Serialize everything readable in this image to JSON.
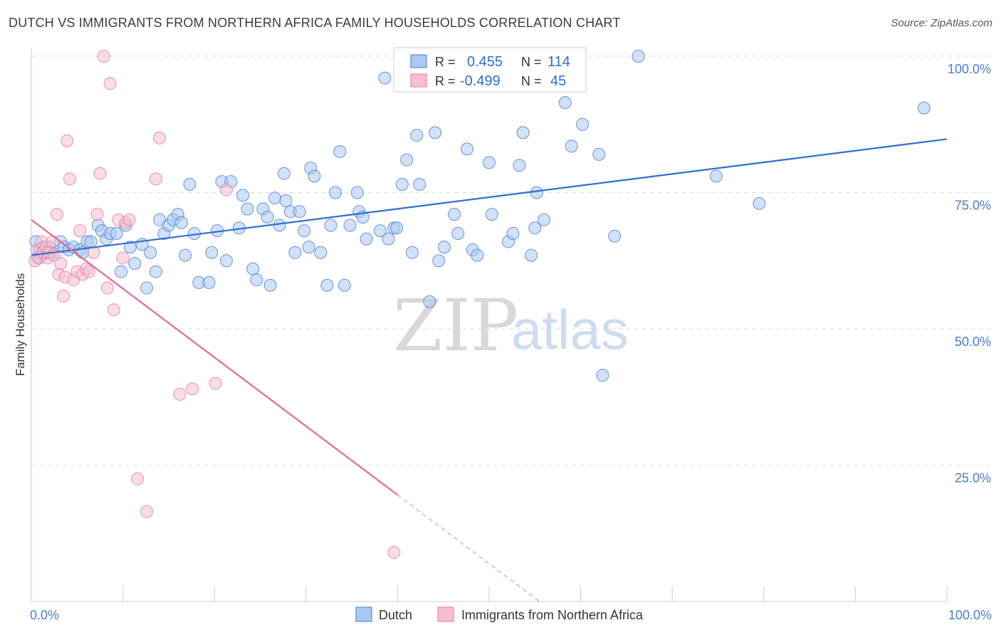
{
  "header": {
    "title": "DUTCH VS IMMIGRANTS FROM NORTHERN AFRICA FAMILY HOUSEHOLDS CORRELATION CHART",
    "source": "Source: ZipAtlas.com"
  },
  "stats_box": {
    "rows": [
      {
        "r_label": "R =",
        "r_value": "0.455",
        "n_label": "N =",
        "n_value": "114",
        "color": "#a9c8f2",
        "stroke": "#4a7bd0"
      },
      {
        "r_label": "R =",
        "r_value": "-0.499",
        "n_label": "N =",
        "n_value": "45",
        "color": "#f6bfd0",
        "stroke": "#e07aa0"
      }
    ]
  },
  "watermark": {
    "zip": "ZIP",
    "atlas": "atlas"
  },
  "chart_data": {
    "type": "scatter",
    "title": "DUTCH VS IMMIGRANTS FROM NORTHERN AFRICA FAMILY HOUSEHOLDS CORRELATION CHART",
    "xlabel": "",
    "ylabel": "Family Households",
    "xlim": [
      0,
      100
    ],
    "ylim": [
      0,
      100
    ],
    "x_tick_labels": [
      {
        "value": 0,
        "label": "0.0%"
      },
      {
        "value": 100,
        "label": "100.0%"
      }
    ],
    "y_tick_labels": [
      {
        "value": 100,
        "label": "100.0%"
      },
      {
        "value": 75,
        "label": "75.0%"
      },
      {
        "value": 50,
        "label": "50.0%"
      },
      {
        "value": 25,
        "label": "25.0%"
      }
    ],
    "grid": "horizontal dashed",
    "legend_position": "bottom-center",
    "series": [
      {
        "name": "Dutch",
        "color": "#a9c8f2",
        "stroke": "#4a7bd0",
        "line_color": "#2e6fce",
        "trend": {
          "x": [
            0,
            100
          ],
          "y": [
            63.5,
            84.8
          ],
          "dashed_from": null
        },
        "points": [
          [
            0.5,
            66
          ],
          [
            0.7,
            63
          ],
          [
            0.9,
            64.5
          ],
          [
            1.1,
            63.5
          ],
          [
            1.3,
            65
          ],
          [
            1.5,
            64
          ],
          [
            1.8,
            64
          ],
          [
            2.0,
            65
          ],
          [
            2.3,
            64
          ],
          [
            3.2,
            66
          ],
          [
            3.6,
            65
          ],
          [
            4.1,
            64.5
          ],
          [
            4.6,
            65
          ],
          [
            5.3,
            64.5
          ],
          [
            5.6,
            64
          ],
          [
            6.1,
            66
          ],
          [
            6.5,
            66
          ],
          [
            7.3,
            69
          ],
          [
            7.7,
            68
          ],
          [
            8.2,
            66.5
          ],
          [
            8.6,
            67.5
          ],
          [
            9.3,
            67.5
          ],
          [
            9.8,
            60.5
          ],
          [
            10.3,
            69
          ],
          [
            10.8,
            65
          ],
          [
            11.3,
            62
          ],
          [
            12.1,
            65.5
          ],
          [
            12.6,
            57.5
          ],
          [
            13.0,
            64
          ],
          [
            13.6,
            60.5
          ],
          [
            14.0,
            70
          ],
          [
            14.5,
            67.5
          ],
          [
            15.0,
            69
          ],
          [
            15.5,
            70
          ],
          [
            16.0,
            71
          ],
          [
            16.4,
            69.5
          ],
          [
            16.8,
            63.5
          ],
          [
            17.3,
            76.5
          ],
          [
            17.8,
            67.5
          ],
          [
            18.3,
            58.5
          ],
          [
            19.4,
            58.5
          ],
          [
            19.7,
            64
          ],
          [
            20.3,
            68
          ],
          [
            20.8,
            77
          ],
          [
            21.3,
            62.5
          ],
          [
            21.8,
            77
          ],
          [
            22.7,
            68.5
          ],
          [
            23.1,
            74.5
          ],
          [
            23.6,
            72
          ],
          [
            24.2,
            61
          ],
          [
            24.6,
            59
          ],
          [
            25.3,
            72
          ],
          [
            25.8,
            70.5
          ],
          [
            26.1,
            58
          ],
          [
            26.6,
            74
          ],
          [
            27.1,
            69
          ],
          [
            27.6,
            78.5
          ],
          [
            27.8,
            73.5
          ],
          [
            28.3,
            71.5
          ],
          [
            28.8,
            64
          ],
          [
            29.3,
            71.5
          ],
          [
            29.8,
            68
          ],
          [
            30.3,
            65
          ],
          [
            30.5,
            79.5
          ],
          [
            30.9,
            78
          ],
          [
            31.6,
            64
          ],
          [
            32.3,
            58
          ],
          [
            32.7,
            69
          ],
          [
            33.2,
            75
          ],
          [
            33.7,
            82.5
          ],
          [
            34.2,
            58
          ],
          [
            34.8,
            69
          ],
          [
            35.6,
            75
          ],
          [
            35.8,
            71.5
          ],
          [
            36.2,
            70.5
          ],
          [
            36.6,
            66.5
          ],
          [
            38.1,
            68
          ],
          [
            38.6,
            96
          ],
          [
            39.0,
            66.5
          ],
          [
            39.6,
            68.5
          ],
          [
            39.9,
            68.5
          ],
          [
            40.5,
            76.5
          ],
          [
            41.0,
            81
          ],
          [
            41.6,
            64
          ],
          [
            42.1,
            85.5
          ],
          [
            42.4,
            76.5
          ],
          [
            43.5,
            55
          ],
          [
            44.1,
            86
          ],
          [
            44.5,
            62.5
          ],
          [
            45.1,
            65
          ],
          [
            46.2,
            71
          ],
          [
            46.6,
            67.5
          ],
          [
            47.6,
            83
          ],
          [
            48.2,
            64.5
          ],
          [
            48.7,
            63.5
          ],
          [
            50.0,
            80.5
          ],
          [
            50.3,
            71
          ],
          [
            52.1,
            66
          ],
          [
            52.6,
            67.5
          ],
          [
            53.3,
            80
          ],
          [
            53.7,
            86
          ],
          [
            54.6,
            63.5
          ],
          [
            55.0,
            68.5
          ],
          [
            55.2,
            75
          ],
          [
            56.0,
            70
          ],
          [
            58.3,
            91.5
          ],
          [
            59.0,
            83.5
          ],
          [
            60.2,
            87.5
          ],
          [
            62.0,
            82
          ],
          [
            62.4,
            41.5
          ],
          [
            63.7,
            67
          ],
          [
            66.3,
            100
          ],
          [
            74.8,
            78
          ],
          [
            79.5,
            73
          ],
          [
            97.5,
            90.5
          ]
        ]
      },
      {
        "name": "Immigrants from Northern Africa",
        "color": "#f6bfd0",
        "stroke": "#e07aa0",
        "line_color": "#e06a98",
        "trend": {
          "x": [
            0,
            55.5
          ],
          "y": [
            70,
            0
          ],
          "dashed_from": 40
        },
        "points": [
          [
            0.4,
            62.5
          ],
          [
            0.6,
            64.5
          ],
          [
            0.9,
            63
          ],
          [
            1.1,
            66
          ],
          [
            1.3,
            64
          ],
          [
            1.6,
            65
          ],
          [
            1.8,
            63
          ],
          [
            2.0,
            64
          ],
          [
            2.3,
            66
          ],
          [
            2.5,
            63.5
          ],
          [
            2.8,
            71
          ],
          [
            3.0,
            60
          ],
          [
            3.2,
            62
          ],
          [
            3.5,
            56
          ],
          [
            3.7,
            59.5
          ],
          [
            3.9,
            84.5
          ],
          [
            4.2,
            77.5
          ],
          [
            4.6,
            59
          ],
          [
            5.0,
            60.5
          ],
          [
            5.3,
            68
          ],
          [
            5.6,
            60
          ],
          [
            6.0,
            61
          ],
          [
            6.3,
            60.5
          ],
          [
            6.8,
            64
          ],
          [
            7.2,
            71
          ],
          [
            7.5,
            78.5
          ],
          [
            7.9,
            100
          ],
          [
            8.3,
            57.5
          ],
          [
            8.6,
            95
          ],
          [
            9.0,
            53.5
          ],
          [
            9.5,
            70
          ],
          [
            10.0,
            63
          ],
          [
            10.3,
            69.5
          ],
          [
            10.7,
            70
          ],
          [
            11.6,
            22.5
          ],
          [
            12.6,
            16.5
          ],
          [
            13.6,
            77.5
          ],
          [
            14.0,
            85
          ],
          [
            16.2,
            38
          ],
          [
            17.6,
            39
          ],
          [
            20.1,
            40
          ],
          [
            21.3,
            75.5
          ],
          [
            39.6,
            9
          ]
        ]
      }
    ]
  },
  "legend": {
    "items": [
      {
        "label": "Dutch",
        "color": "#a9c8f2",
        "stroke": "#4a7bd0"
      },
      {
        "label": "Immigrants from Northern Africa",
        "color": "#f6bfd0",
        "stroke": "#e07aa0"
      }
    ]
  }
}
